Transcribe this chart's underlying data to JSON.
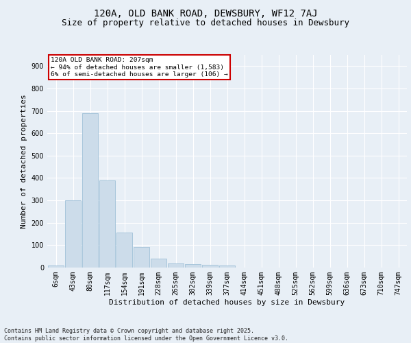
{
  "title_line1": "120A, OLD BANK ROAD, DEWSBURY, WF12 7AJ",
  "title_line2": "Size of property relative to detached houses in Dewsbury",
  "xlabel": "Distribution of detached houses by size in Dewsbury",
  "ylabel": "Number of detached properties",
  "footnote": "Contains HM Land Registry data © Crown copyright and database right 2025.\nContains public sector information licensed under the Open Government Licence v3.0.",
  "bar_labels": [
    "6sqm",
    "43sqm",
    "80sqm",
    "117sqm",
    "154sqm",
    "191sqm",
    "228sqm",
    "265sqm",
    "302sqm",
    "339sqm",
    "377sqm",
    "414sqm",
    "451sqm",
    "488sqm",
    "525sqm",
    "562sqm",
    "599sqm",
    "636sqm",
    "673sqm",
    "710sqm",
    "747sqm"
  ],
  "bar_values": [
    8,
    300,
    690,
    390,
    157,
    92,
    40,
    17,
    16,
    12,
    8,
    0,
    0,
    0,
    0,
    0,
    0,
    0,
    0,
    0,
    0
  ],
  "bar_color": "#ccdcea",
  "bar_edge_color": "#a0c0d8",
  "annotation_text": "120A OLD BANK ROAD: 207sqm\n← 94% of detached houses are smaller (1,583)\n6% of semi-detached houses are larger (106) →",
  "annotation_box_edge": "#cc0000",
  "ylim": [
    0,
    950
  ],
  "yticks": [
    0,
    100,
    200,
    300,
    400,
    500,
    600,
    700,
    800,
    900
  ],
  "bg_color": "#e8eff6",
  "plot_bg_color": "#e8eff6",
  "grid_color": "#ffffff",
  "title_fontsize": 10,
  "subtitle_fontsize": 9,
  "axis_label_fontsize": 8,
  "tick_fontsize": 7,
  "footnote_fontsize": 6
}
